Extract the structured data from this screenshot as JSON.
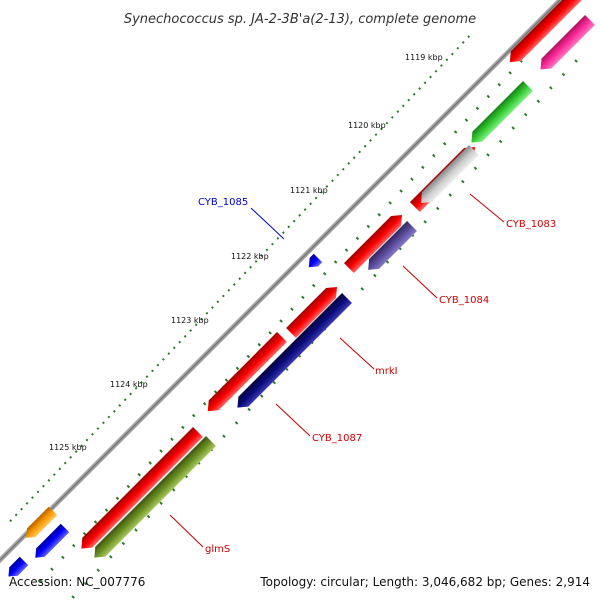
{
  "title": "Synechococcus sp. JA-2-3B'a(2-13), complete genome",
  "accession": "Accession: NC_007776",
  "summary": "Topology: circular; Length: 3,046,682 bp; Genes: 2,914",
  "kbp_ticks": [
    "1119 kbp",
    "1120 kbp",
    "1121 kbp",
    "1122 kbp",
    "1123 kbp",
    "1124 kbp",
    "1125 kbp"
  ],
  "gene_labels": {
    "cyb_1083": "CYB_1083",
    "cyb_1084": "CYB_1084",
    "cyb_1085": "CYB_1085",
    "mrkl": "mrkI",
    "cyb_1087": "CYB_1087",
    "glms": "glmS"
  },
  "colors": {
    "backbone": "#888888",
    "cds": "#ff0000",
    "label_red": "#cc0000",
    "label_blue": "#0000cc",
    "tick": "#2a7a2a",
    "pink": "#ff2a9a",
    "green": "#33cc33",
    "grey": "#cccccc",
    "slate": "#5a4a9a",
    "navy": "#0a0a7a",
    "olive": "#6b8e23",
    "blue": "#0000ff",
    "orange": "#ff9900"
  }
}
